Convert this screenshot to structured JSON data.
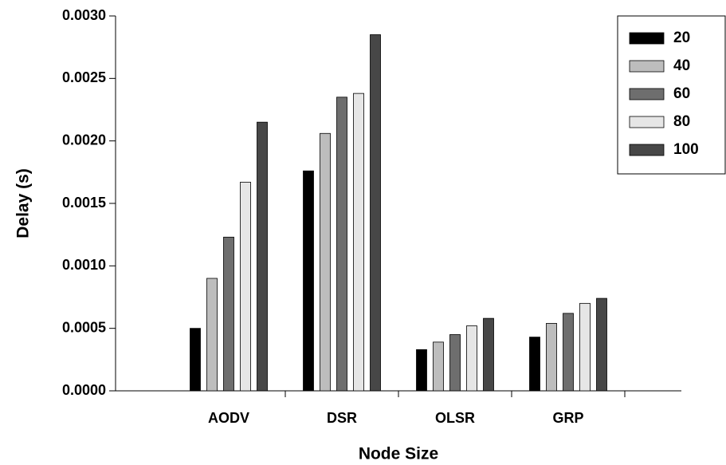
{
  "chart_data": {
    "type": "bar",
    "categories": [
      "AODV",
      "DSR",
      "OLSR",
      "GRP"
    ],
    "series": [
      {
        "name": "20",
        "color": "#000000",
        "values": [
          0.0005,
          0.00176,
          0.00033,
          0.00043
        ]
      },
      {
        "name": "40",
        "color": "#bdbdbd",
        "values": [
          0.0009,
          0.00206,
          0.00039,
          0.00054
        ]
      },
      {
        "name": "60",
        "color": "#6e6e6e",
        "values": [
          0.00123,
          0.00235,
          0.00045,
          0.00062
        ]
      },
      {
        "name": "80",
        "color": "#e6e6e6",
        "values": [
          0.00167,
          0.00238,
          0.00052,
          0.0007
        ]
      },
      {
        "name": "100",
        "color": "#474747",
        "values": [
          0.00215,
          0.00285,
          0.00058,
          0.00074
        ]
      }
    ],
    "xlabel": "Node Size",
    "ylabel": "Delay (s)",
    "ylim": [
      0,
      0.003
    ],
    "yticks": [
      {
        "value": 0,
        "label": "0.0000"
      },
      {
        "value": 0.0005,
        "label": "0.0005"
      },
      {
        "value": 0.001,
        "label": "0.0010"
      },
      {
        "value": 0.0015,
        "label": "0.0015"
      },
      {
        "value": 0.002,
        "label": "0.0020"
      },
      {
        "value": 0.0025,
        "label": "0.0025"
      },
      {
        "value": 0.003,
        "label": "0.0030"
      }
    ],
    "legend": "top-right"
  }
}
